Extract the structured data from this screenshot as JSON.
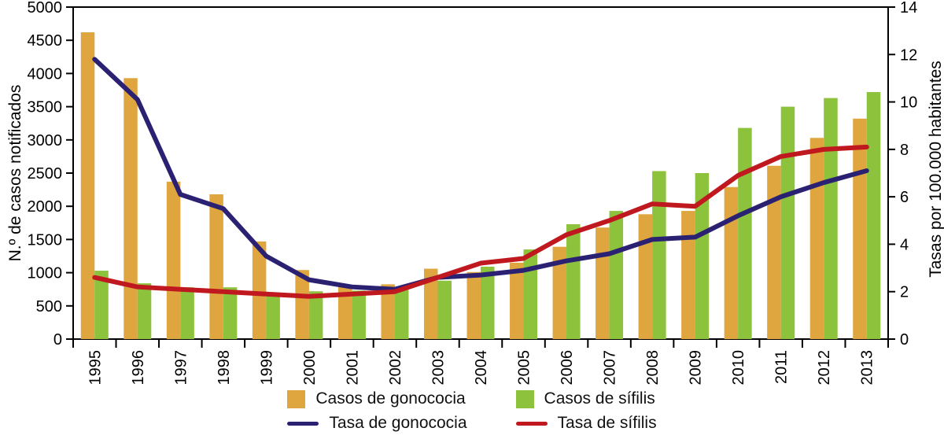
{
  "chart_data": {
    "type": "bar",
    "subtype": "combo-bar-line",
    "categories": [
      "1995",
      "1996",
      "1997",
      "1998",
      "1999",
      "2000",
      "2001",
      "2002",
      "2003",
      "2004",
      "2005",
      "2006",
      "2007",
      "2008",
      "2009",
      "2010",
      "2011",
      "2012",
      "2013"
    ],
    "series": [
      {
        "name": "Casos de gonococia",
        "kind": "bar",
        "axis": "left",
        "color": "#DFA53F",
        "values": [
          4620,
          3930,
          2370,
          2180,
          1470,
          1040,
          800,
          825,
          1060,
          1010,
          1150,
          1390,
          1680,
          1880,
          1930,
          2290,
          2610,
          3030,
          3320
        ]
      },
      {
        "name": "Casos de sífilis",
        "kind": "bar",
        "axis": "left",
        "color": "#8CC23C",
        "values": [
          1030,
          840,
          780,
          780,
          690,
          720,
          730,
          745,
          880,
          1090,
          1350,
          1730,
          1930,
          2530,
          2500,
          3180,
          3500,
          3630,
          3720
        ]
      },
      {
        "name": "Tasa de gonococia",
        "kind": "line",
        "axis": "right",
        "color": "#2B2173",
        "values": [
          11.8,
          10.1,
          6.1,
          5.5,
          3.5,
          2.5,
          2.2,
          2.1,
          2.6,
          2.7,
          2.9,
          3.3,
          3.6,
          4.2,
          4.3,
          5.2,
          6.0,
          6.6,
          7.1
        ]
      },
      {
        "name": "Tasa de sífilis",
        "kind": "line",
        "axis": "right",
        "color": "#C0181F",
        "values": [
          2.6,
          2.2,
          2.1,
          2.0,
          1.9,
          1.8,
          1.9,
          2.0,
          2.6,
          3.2,
          3.4,
          4.4,
          5.0,
          5.7,
          5.6,
          6.9,
          7.7,
          8.0,
          8.1
        ]
      }
    ],
    "left_axis": {
      "label": "N.º de casos notificados",
      "min": 0,
      "max": 5000,
      "step": 500,
      "tick_labels": [
        "0",
        "500",
        "1000",
        "1500",
        "2000",
        "2500",
        "3000",
        "3500",
        "4000",
        "4500",
        "5000"
      ]
    },
    "right_axis": {
      "label": "Tasas por 100.000 habitantes",
      "min": 0,
      "max": 14,
      "step": 2,
      "tick_labels": [
        "0",
        "2",
        "4",
        "6",
        "8",
        "10",
        "12",
        "14"
      ]
    },
    "title": "",
    "grid": false,
    "legend_position": "bottom"
  },
  "legend": {
    "items": [
      {
        "label": "Casos de gonococia",
        "swatch": "square",
        "color": "#DFA53F"
      },
      {
        "label": "Casos de sífilis",
        "swatch": "square",
        "color": "#8CC23C"
      },
      {
        "label": "Tasa de gonococia",
        "swatch": "line",
        "color": "#2B2173"
      },
      {
        "label": "Tasa de sífilis",
        "swatch": "line",
        "color": "#C0181F"
      }
    ]
  }
}
